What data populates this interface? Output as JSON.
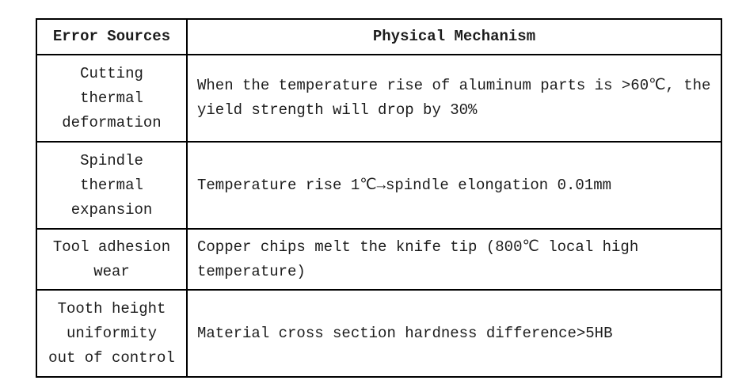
{
  "table": {
    "columns": [
      {
        "label": "Error Sources"
      },
      {
        "label": "Physical Mechanism"
      }
    ],
    "rows": [
      {
        "source_lines": [
          "Cutting",
          "thermal",
          "deformation"
        ],
        "mechanism_lines": [
          "When the temperature rise of aluminum parts is >60℃, the",
          "yield strength will drop by 30%"
        ]
      },
      {
        "source_lines": [
          "Spindle",
          "thermal",
          "expansion"
        ],
        "mechanism_lines": [
          "Temperature rise 1℃→spindle elongation 0.01mm"
        ]
      },
      {
        "source_lines": [
          "Tool adhesion",
          "wear"
        ],
        "mechanism_lines": [
          "Copper chips melt the knife tip (800℃ local high",
          "temperature)"
        ]
      },
      {
        "source_lines": [
          "Tooth height",
          "uniformity",
          "out of control"
        ],
        "mechanism_lines": [
          "Material cross section hardness difference>5HB"
        ]
      }
    ],
    "colors": {
      "border": "#000000",
      "text": "#1c1c1c",
      "background": "#ffffff"
    }
  }
}
